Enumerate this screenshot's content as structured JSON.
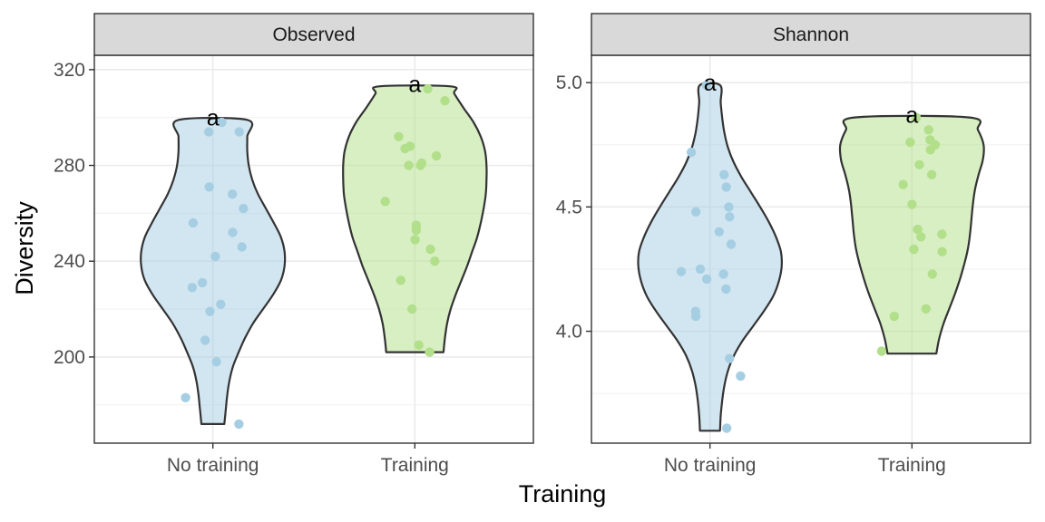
{
  "chart_data": {
    "type": "violin",
    "xlabel": "Training",
    "ylabel": "Diversity",
    "categories": [
      "No training",
      "Training"
    ],
    "colors": {
      "No training": "#a6cee3",
      "Training": "#b2df8a",
      "outline": "#333333",
      "strip": "#d9d9d9"
    },
    "grid": true,
    "panels": [
      {
        "name": "Observed",
        "ylim": [
          164,
          326
        ],
        "yticks": [
          200,
          240,
          280,
          320
        ],
        "yticklabels": [
          "200",
          "240",
          "280",
          "320"
        ],
        "violins": [
          {
            "category": "No training",
            "range": [
              172,
              299
            ],
            "density": [
              [
                172,
                0.16
              ],
              [
                178,
                0.18
              ],
              [
                184,
                0.2
              ],
              [
                190,
                0.23
              ],
              [
                196,
                0.28
              ],
              [
                202,
                0.36
              ],
              [
                208,
                0.45
              ],
              [
                214,
                0.56
              ],
              [
                220,
                0.7
              ],
              [
                226,
                0.84
              ],
              [
                232,
                0.95
              ],
              [
                238,
                1.0
              ],
              [
                244,
                1.0
              ],
              [
                250,
                0.95
              ],
              [
                256,
                0.85
              ],
              [
                262,
                0.74
              ],
              [
                268,
                0.63
              ],
              [
                274,
                0.55
              ],
              [
                280,
                0.5
              ],
              [
                286,
                0.48
              ],
              [
                292,
                0.48
              ],
              [
                299,
                0.48
              ]
            ],
            "label": "a",
            "points": [
              172,
              183,
              198,
              207,
              219,
              222,
              229,
              231,
              242,
              246,
              252,
              256,
              262,
              268,
              271,
              294,
              294,
              298
            ]
          },
          {
            "category": "Training",
            "range": [
              202,
              313
            ],
            "density": [
              [
                202,
                0.4
              ],
              [
                208,
                0.42
              ],
              [
                214,
                0.45
              ],
              [
                220,
                0.5
              ],
              [
                226,
                0.57
              ],
              [
                232,
                0.65
              ],
              [
                238,
                0.73
              ],
              [
                244,
                0.8
              ],
              [
                250,
                0.87
              ],
              [
                256,
                0.92
              ],
              [
                262,
                0.96
              ],
              [
                268,
                0.99
              ],
              [
                274,
                1.0
              ],
              [
                280,
                1.0
              ],
              [
                286,
                0.98
              ],
              [
                292,
                0.92
              ],
              [
                298,
                0.82
              ],
              [
                304,
                0.68
              ],
              [
                310,
                0.55
              ],
              [
                313,
                0.5
              ]
            ],
            "label": "a",
            "points": [
              202,
              205,
              220,
              232,
              240,
              245,
              249,
              253,
              255,
              265,
              280,
              281,
              280,
              284,
              287,
              288,
              292,
              307,
              312
            ]
          }
        ]
      },
      {
        "name": "Shannon",
        "ylim": [
          3.55,
          5.11
        ],
        "yticks": [
          4.0,
          4.5,
          5.0
        ],
        "yticklabels": [
          "4.0",
          "4.5",
          "5.0"
        ],
        "violins": [
          {
            "category": "No training",
            "range": [
              3.6,
              4.99
            ],
            "density": [
              [
                3.6,
                0.14
              ],
              [
                3.66,
                0.15
              ],
              [
                3.72,
                0.17
              ],
              [
                3.78,
                0.2
              ],
              [
                3.84,
                0.25
              ],
              [
                3.9,
                0.33
              ],
              [
                3.96,
                0.45
              ],
              [
                4.02,
                0.6
              ],
              [
                4.08,
                0.75
              ],
              [
                4.14,
                0.88
              ],
              [
                4.2,
                0.96
              ],
              [
                4.26,
                1.0
              ],
              [
                4.32,
                0.99
              ],
              [
                4.38,
                0.92
              ],
              [
                4.44,
                0.82
              ],
              [
                4.5,
                0.7
              ],
              [
                4.56,
                0.57
              ],
              [
                4.62,
                0.44
              ],
              [
                4.68,
                0.33
              ],
              [
                4.74,
                0.25
              ],
              [
                4.8,
                0.2
              ],
              [
                4.86,
                0.17
              ],
              [
                4.92,
                0.15
              ],
              [
                4.99,
                0.14
              ]
            ],
            "label": "a",
            "points": [
              3.61,
              3.82,
              3.89,
              4.06,
              4.08,
              4.17,
              4.21,
              4.23,
              4.24,
              4.25,
              4.35,
              4.4,
              4.46,
              4.48,
              4.5,
              4.58,
              4.63,
              4.72,
              4.99
            ]
          },
          {
            "category": "Training",
            "range": [
              3.91,
              4.86
            ],
            "density": [
              [
                3.91,
                0.34
              ],
              [
                3.97,
                0.38
              ],
              [
                4.03,
                0.44
              ],
              [
                4.09,
                0.52
              ],
              [
                4.15,
                0.6
              ],
              [
                4.21,
                0.67
              ],
              [
                4.27,
                0.73
              ],
              [
                4.33,
                0.78
              ],
              [
                4.39,
                0.81
              ],
              [
                4.45,
                0.83
              ],
              [
                4.51,
                0.85
              ],
              [
                4.57,
                0.88
              ],
              [
                4.63,
                0.93
              ],
              [
                4.69,
                0.99
              ],
              [
                4.75,
                1.0
              ],
              [
                4.81,
                0.92
              ],
              [
                4.86,
                0.8
              ]
            ],
            "label": "a",
            "points": [
              3.92,
              4.06,
              4.09,
              4.23,
              4.32,
              4.33,
              4.38,
              4.39,
              4.41,
              4.51,
              4.59,
              4.63,
              4.67,
              4.73,
              4.75,
              4.76,
              4.77,
              4.81,
              4.86
            ]
          }
        ]
      }
    ]
  }
}
